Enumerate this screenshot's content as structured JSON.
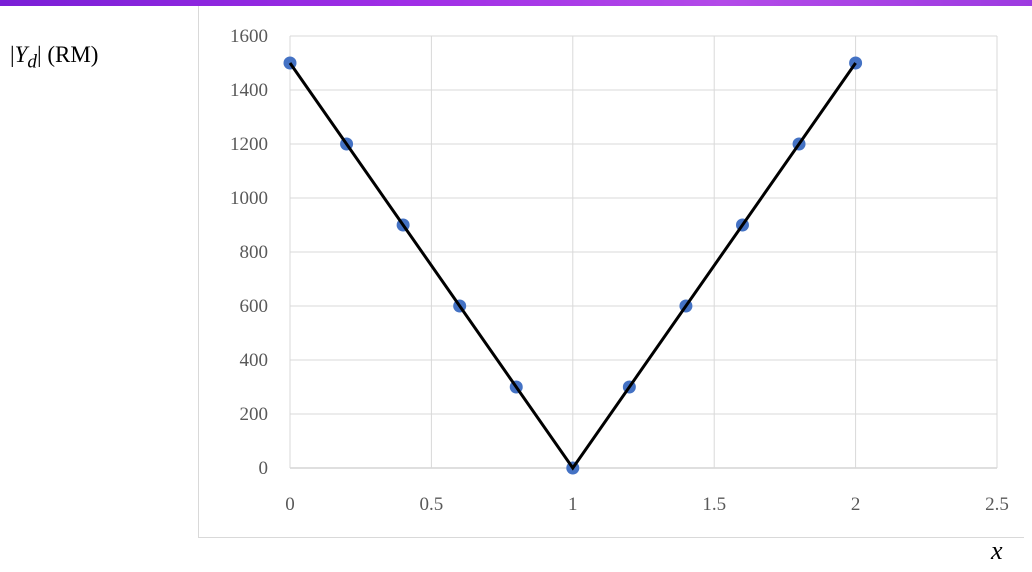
{
  "chart_data": {
    "type": "scatter",
    "xlabel": "x",
    "ylabel": "|Y_d| (RM)",
    "ylabel_parts": {
      "open": "|",
      "var": "Y",
      "sub": "d",
      "close": "| (RM)"
    },
    "xlim": [
      0,
      2.5
    ],
    "ylim": [
      0,
      1600
    ],
    "x_ticks": [
      0,
      0.5,
      1,
      1.5,
      2,
      2.5
    ],
    "x_tick_labels": [
      "0",
      "0.5",
      "1",
      "1.5",
      "2",
      "2.5"
    ],
    "y_ticks": [
      0,
      200,
      400,
      600,
      800,
      1000,
      1200,
      1400,
      1600
    ],
    "y_tick_labels": [
      "0",
      "200",
      "400",
      "600",
      "800",
      "1000",
      "1200",
      "1400",
      "1600"
    ],
    "grid": true,
    "legend": false,
    "series": [
      {
        "type": "scatter",
        "color": "#4472c4",
        "x": [
          0,
          0.2,
          0.4,
          0.6,
          0.8,
          1,
          1.2,
          1.4,
          1.6,
          1.8,
          2
        ],
        "y": [
          1500,
          1200,
          900,
          600,
          300,
          0,
          300,
          600,
          900,
          1200,
          1500
        ]
      },
      {
        "type": "line",
        "color": "#000000",
        "x": [
          0,
          1,
          2
        ],
        "y": [
          1500,
          0,
          1500
        ]
      }
    ]
  }
}
